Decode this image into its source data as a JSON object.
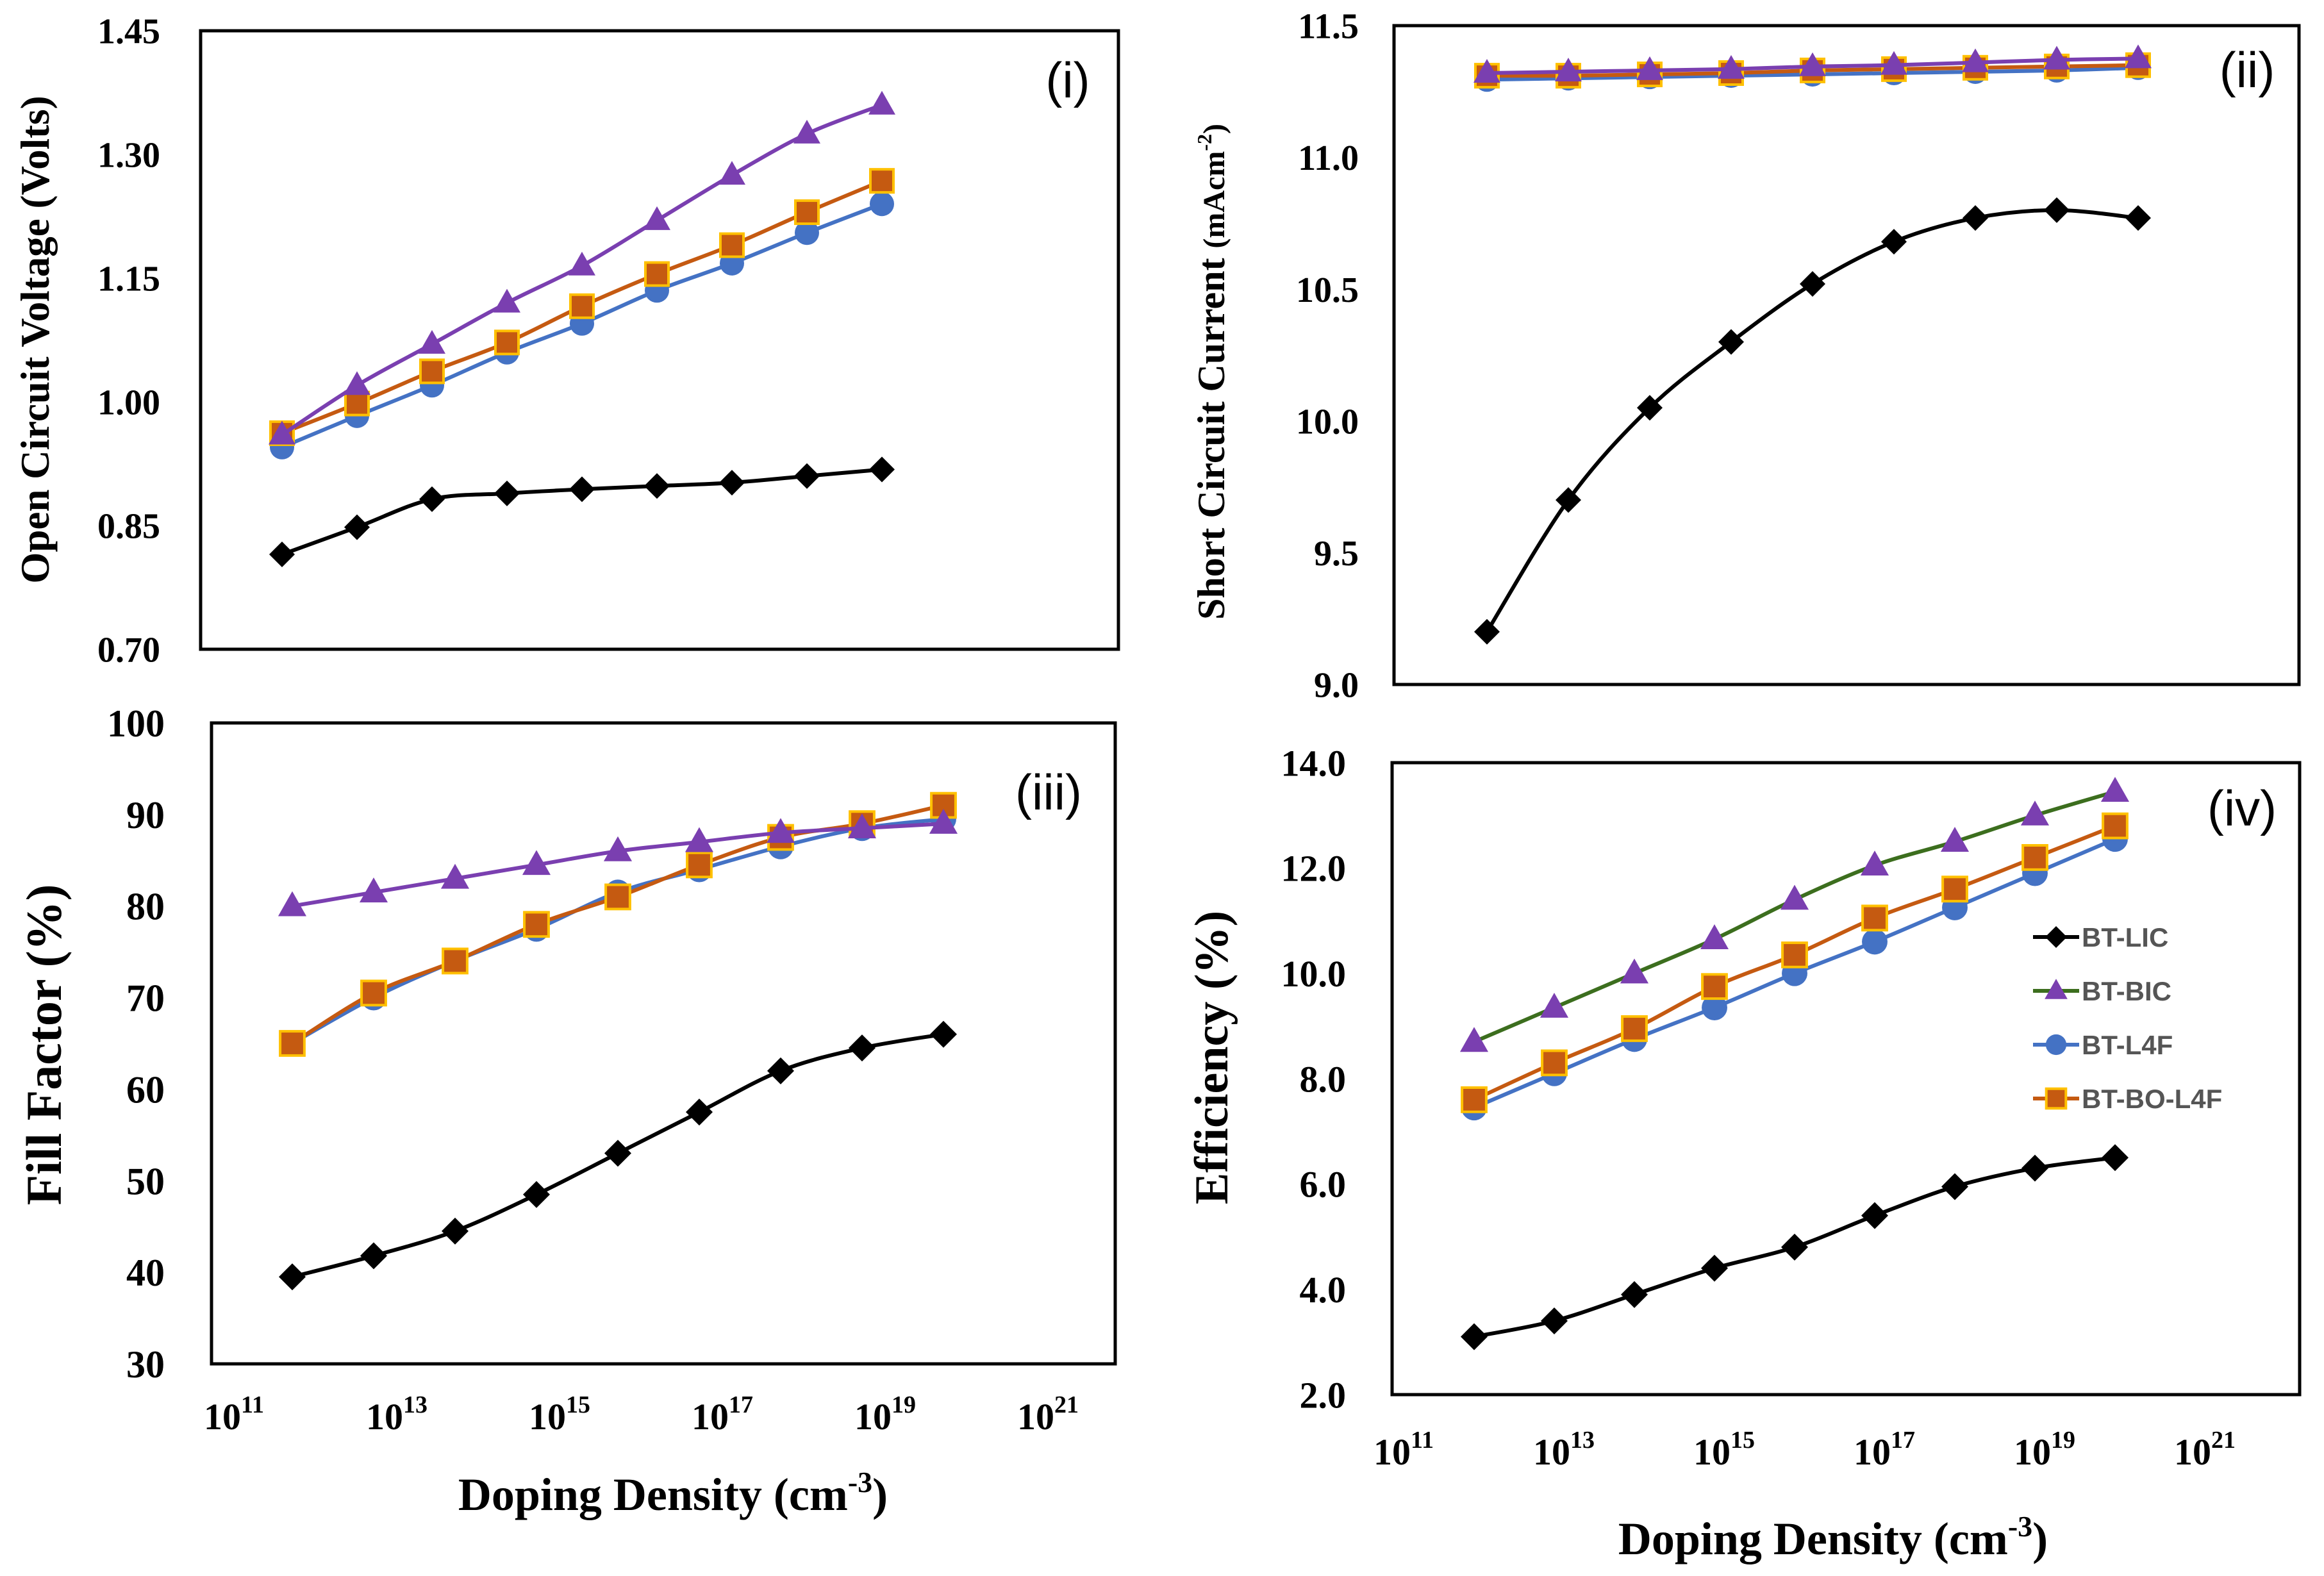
{
  "chart_data": [
    {
      "id": "i",
      "type": "line",
      "panel_label": "(i)",
      "ylabel": "Open Circuit Voltage (Volts)",
      "yticks": [
        "0.70",
        "0.85",
        "1.00",
        "1.15",
        "1.30",
        "1.45"
      ],
      "ylim": [
        0.7,
        1.45
      ],
      "x_exponents": [
        12,
        13,
        14,
        15,
        16,
        17,
        18,
        19,
        20
      ],
      "series": [
        {
          "name": "BT-LIC",
          "values": [
            0.815,
            0.848,
            0.882,
            0.889,
            0.894,
            0.898,
            0.902,
            0.91,
            0.918
          ]
        },
        {
          "name": "BT-BIC",
          "values": [
            0.96,
            1.02,
            1.07,
            1.12,
            1.165,
            1.22,
            1.275,
            1.325,
            1.36
          ]
        },
        {
          "name": "BT-L4F",
          "values": [
            0.945,
            0.983,
            1.02,
            1.06,
            1.095,
            1.135,
            1.168,
            1.205,
            1.24
          ]
        },
        {
          "name": "BT-BO-L4F",
          "values": [
            0.962,
            0.998,
            1.037,
            1.072,
            1.116,
            1.155,
            1.19,
            1.23,
            1.268
          ]
        }
      ]
    },
    {
      "id": "ii",
      "type": "line",
      "panel_label": "(ii)",
      "ylabel_main": "Short Circuit Current ",
      "ylabel_unit": "(mAcm",
      "ylabel_sup": "-2",
      "ylabel_close": ")",
      "yticks": [
        "9.0",
        "9.5",
        "10.0",
        "10.5",
        "11.0",
        "11.5"
      ],
      "ylim": [
        9.0,
        11.5
      ],
      "x_exponents": [
        12,
        13,
        14,
        15,
        16,
        17,
        18,
        19,
        20
      ],
      "series": [
        {
          "name": "BT-LIC",
          "values": [
            9.2,
            9.7,
            10.05,
            10.3,
            10.52,
            10.68,
            10.77,
            10.8,
            10.77
          ]
        },
        {
          "name": "BT-BIC",
          "values": [
            11.32,
            11.325,
            11.33,
            11.335,
            11.345,
            11.35,
            11.36,
            11.37,
            11.375
          ]
        },
        {
          "name": "BT-L4F",
          "values": [
            11.295,
            11.3,
            11.305,
            11.31,
            11.315,
            11.32,
            11.325,
            11.33,
            11.34
          ]
        },
        {
          "name": "BT-BO-L4F",
          "values": [
            11.31,
            11.31,
            11.315,
            11.32,
            11.33,
            11.335,
            11.34,
            11.345,
            11.35
          ]
        }
      ]
    },
    {
      "id": "iii",
      "type": "line",
      "panel_label": "(iii)",
      "ylabel": "Fill Factor (%)",
      "yticks": [
        "30",
        "40",
        "50",
        "60",
        "70",
        "80",
        "90",
        "100"
      ],
      "ylim": [
        30,
        100
      ],
      "xlabel_main": "Doping Density (cm",
      "xlabel_sup": "-3",
      "xlabel_close": ")",
      "xticks": [
        {
          "base": "10",
          "exp": "11"
        },
        {
          "base": "10",
          "exp": "13"
        },
        {
          "base": "10",
          "exp": "15"
        },
        {
          "base": "10",
          "exp": "17"
        },
        {
          "base": "10",
          "exp": "19"
        },
        {
          "base": "10",
          "exp": "21"
        }
      ],
      "x_exponents": [
        12,
        13,
        14,
        15,
        16,
        17,
        18,
        19,
        20
      ],
      "series": [
        {
          "name": "BT-LIC",
          "values": [
            39.5,
            41.8,
            44.5,
            48.5,
            53.0,
            57.5,
            62.0,
            64.5,
            66.0
          ]
        },
        {
          "name": "BT-BIC",
          "values": [
            80.0,
            81.5,
            83.0,
            84.5,
            86.0,
            87.0,
            88.0,
            88.5,
            89.0
          ]
        },
        {
          "name": "BT-L4F",
          "values": [
            65.0,
            70.0,
            74.0,
            77.5,
            81.5,
            84.0,
            86.5,
            88.5,
            89.5
          ]
        },
        {
          "name": "BT-BO-L4F",
          "values": [
            65.0,
            70.5,
            74.0,
            78.0,
            81.0,
            84.5,
            87.5,
            89.0,
            91.0
          ]
        }
      ]
    },
    {
      "id": "iv",
      "type": "line",
      "panel_label": "(iv)",
      "ylabel": "Efficiency (%)",
      "yticks": [
        "2.0",
        "4.0",
        "6.0",
        "8.0",
        "10.0",
        "12.0",
        "14.0"
      ],
      "ylim": [
        2.0,
        14.0
      ],
      "xlabel_main": "Doping Density (cm",
      "xlabel_sup": "-3",
      "xlabel_close": ")",
      "xticks": [
        {
          "base": "10",
          "exp": "11"
        },
        {
          "base": "10",
          "exp": "13"
        },
        {
          "base": "10",
          "exp": "15"
        },
        {
          "base": "10",
          "exp": "17"
        },
        {
          "base": "10",
          "exp": "19"
        },
        {
          "base": "10",
          "exp": "21"
        }
      ],
      "x_exponents": [
        12,
        13,
        14,
        15,
        16,
        17,
        18,
        19,
        20
      ],
      "legend_position": "right",
      "legend": [
        "BT-LIC",
        "BT-BIC",
        "BT-L4F",
        "BT-BO-L4F"
      ],
      "series": [
        {
          "name": "BT-LIC",
          "values": [
            3.1,
            3.4,
            3.9,
            4.4,
            4.8,
            5.4,
            5.95,
            6.3,
            6.5
          ]
        },
        {
          "name": "BT-BIC",
          "values": [
            8.7,
            9.35,
            10.0,
            10.65,
            11.4,
            12.05,
            12.5,
            13.0,
            13.45
          ]
        },
        {
          "name": "BT-L4F",
          "values": [
            7.45,
            8.1,
            8.75,
            9.35,
            10.0,
            10.6,
            11.25,
            11.9,
            12.55
          ]
        },
        {
          "name": "BT-BO-L4F",
          "values": [
            7.6,
            8.3,
            8.95,
            9.75,
            10.35,
            11.05,
            11.6,
            12.2,
            12.8
          ]
        }
      ]
    }
  ],
  "styles": {
    "BT-LIC": {
      "line": "#000000",
      "fill": "#000000",
      "marker": "diamond"
    },
    "BT-BIC": {
      "line": "#7a3fb0",
      "fill": "#7a3fb0",
      "marker": "triangle"
    },
    "BT-L4F": {
      "line": "#4472c4",
      "fill": "#4472c4",
      "marker": "circle"
    },
    "BT-BO-L4F": {
      "line": "#c55a11",
      "fill": "#c55a11",
      "marker": "square",
      "edge": "#ffc000"
    }
  },
  "style_overrides": {
    "iv": {
      "BT-BIC": {
        "line": "#3c6e1e"
      }
    }
  }
}
